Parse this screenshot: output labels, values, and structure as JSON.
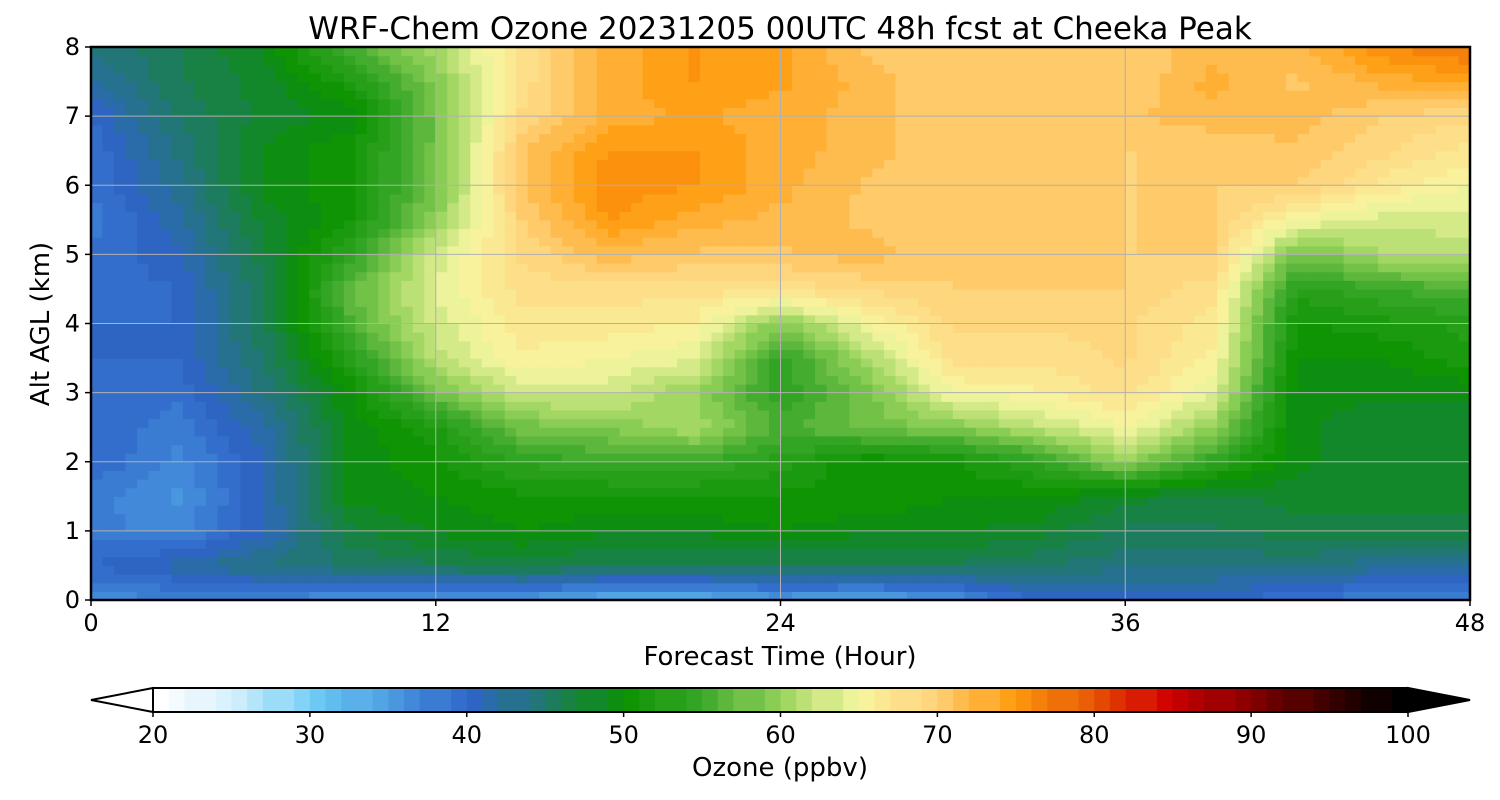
{
  "chart_data": {
    "type": "heatmap",
    "title": "WRF-Chem Ozone  20231205 00UTC 48h fcst at Cheeka Peak",
    "xlabel": "Forecast Time (Hour)",
    "ylabel": "Alt AGL (km)",
    "xlim": [
      0,
      48
    ],
    "ylim": [
      0,
      8
    ],
    "xticks": [
      0,
      12,
      24,
      36,
      48
    ],
    "yticks": [
      0,
      1,
      2,
      3,
      4,
      5,
      6,
      7,
      8
    ],
    "grid": true,
    "x": [
      0,
      3,
      6,
      9,
      12,
      15,
      18,
      21,
      24,
      27,
      30,
      33,
      36,
      39,
      42,
      45,
      48
    ],
    "y": [
      0,
      0.5,
      1,
      1.5,
      2,
      2.5,
      3,
      3.5,
      4,
      4.5,
      5,
      5.5,
      6,
      6.5,
      7,
      7.5,
      8
    ],
    "z": [
      [
        37,
        37,
        37,
        36,
        36,
        35,
        33,
        33,
        35,
        34,
        36,
        40,
        40,
        40,
        39,
        37,
        37
      ],
      [
        40,
        42,
        44,
        45,
        46,
        47,
        46,
        46,
        46,
        46,
        46,
        45,
        44,
        44,
        44,
        43,
        42
      ],
      [
        38,
        37,
        41,
        47,
        49,
        50,
        49,
        49,
        50,
        49,
        49,
        48,
        46,
        46,
        47,
        47,
        47
      ],
      [
        38,
        36,
        41,
        49,
        50,
        51,
        51,
        51,
        51,
        51,
        50,
        50,
        48,
        47,
        48,
        48,
        48
      ],
      [
        40,
        37,
        41,
        49,
        51,
        54,
        55,
        55,
        53,
        50,
        51,
        54,
        60,
        54,
        49,
        48,
        48
      ],
      [
        40,
        38,
        42,
        49,
        52,
        58,
        59,
        61,
        56,
        58,
        59,
        62,
        65,
        60,
        49,
        48,
        48
      ],
      [
        40,
        39,
        44,
        50,
        58,
        63,
        63,
        60,
        54,
        58,
        65,
        66,
        68,
        64,
        49,
        49,
        49
      ],
      [
        40,
        40,
        45,
        53,
        62,
        66,
        65,
        64,
        54,
        61,
        68,
        68,
        69,
        66,
        50,
        50,
        52
      ],
      [
        40,
        40,
        46,
        56,
        63,
        67,
        67,
        66,
        59,
        65,
        69,
        69,
        69,
        67,
        51,
        52,
        53
      ],
      [
        39,
        40,
        46,
        57,
        64,
        68,
        68,
        68,
        68,
        69,
        70,
        70,
        70,
        68,
        53,
        55,
        56
      ],
      [
        39,
        41,
        47,
        54,
        63,
        69,
        72,
        71,
        71,
        72,
        70,
        70,
        70,
        70,
        58,
        61,
        62
      ],
      [
        38,
        42,
        48,
        51,
        60,
        70,
        75,
        73,
        72,
        71,
        70,
        70,
        70,
        70,
        65,
        63,
        63
      ],
      [
        39,
        43,
        49,
        51,
        58,
        71,
        76,
        75,
        73,
        71,
        70,
        70,
        70,
        70,
        70,
        67,
        65
      ],
      [
        39,
        44,
        49,
        51,
        58,
        71,
        75,
        75,
        73,
        72,
        70,
        70,
        70,
        70,
        71,
        69,
        67
      ],
      [
        40,
        45,
        48,
        49,
        58,
        69,
        73,
        74,
        73,
        72,
        70,
        70,
        71,
        72,
        72,
        70,
        69
      ],
      [
        42,
        46,
        48,
        52,
        59,
        68,
        73,
        75,
        74,
        72,
        70,
        70,
        70,
        73,
        71,
        73,
        74
      ],
      [
        44,
        46,
        49,
        56,
        61,
        68,
        73,
        75,
        74,
        71,
        70,
        70,
        70,
        72,
        72,
        76,
        78
      ]
    ],
    "colorbar": {
      "label": "Ozone  (ppbv)",
      "min": 20,
      "max": 100,
      "ticks": [
        20,
        30,
        40,
        50,
        60,
        70,
        80,
        90,
        100
      ],
      "extend": "both"
    },
    "colormap": [
      "#ffffff",
      "#cfeefc",
      "#6ccbf5",
      "#4a9be0",
      "#2f64c8",
      "#1f7a66",
      "#0a9200",
      "#3aa82a",
      "#96d25a",
      "#f7f7a3",
      "#ffd27a",
      "#ff9d0f",
      "#e85a05",
      "#d10000",
      "#8c0000",
      "#420000",
      "#000000"
    ]
  }
}
